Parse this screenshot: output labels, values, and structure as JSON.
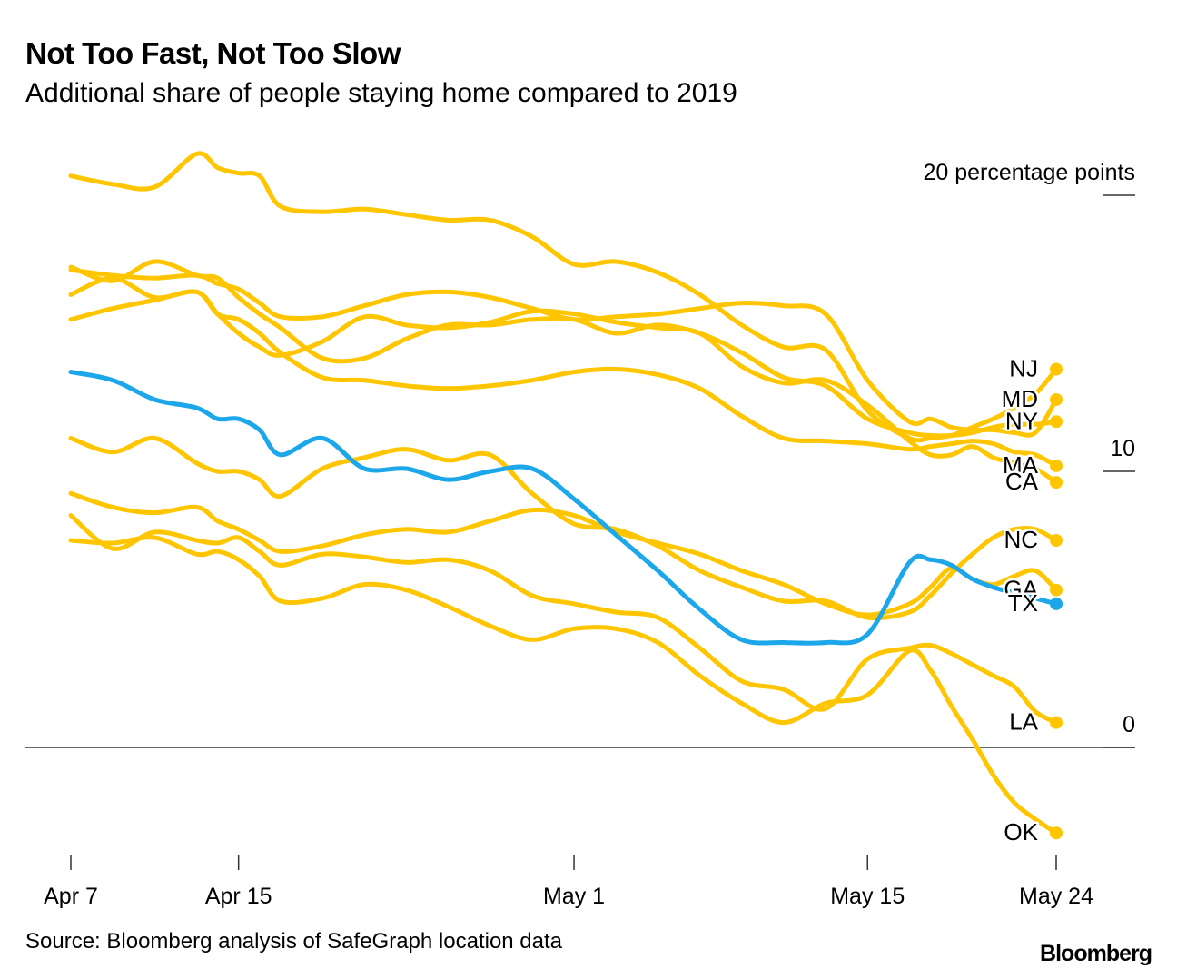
{
  "title": "Not Too Fast, Not Too Slow",
  "subtitle": "Additional share of people staying home compared to 2019",
  "source": "Source: Bloomberg analysis of SafeGraph location data",
  "brand": "Bloomberg",
  "colors": {
    "other": "#FFC600",
    "highlight": "#1BA7EA",
    "axis": "#333333"
  },
  "chart_data": {
    "type": "line",
    "y_unit_label": "20 percentage points",
    "yticks": [
      {
        "value": 20,
        "label": "20 percentage points"
      },
      {
        "value": 10,
        "label": "10"
      },
      {
        "value": 0,
        "label": "0"
      }
    ],
    "ylim": [
      -4,
      22
    ],
    "xticks": [
      {
        "day": 0,
        "label": "Apr 7"
      },
      {
        "day": 8,
        "label": "Apr 15"
      },
      {
        "day": 24,
        "label": "May 1"
      },
      {
        "day": 38,
        "label": "May 15"
      },
      {
        "day": 47,
        "label": "May 24"
      }
    ],
    "x_start_label": "Apr 7",
    "highlight": "TX",
    "series": [
      {
        "name": "NJ",
        "x": [
          0,
          2,
          4,
          6,
          7,
          8,
          9,
          10,
          12,
          14,
          16,
          18,
          20,
          22,
          24,
          26,
          28,
          30,
          32,
          34,
          36,
          38,
          40,
          41,
          42,
          43,
          44,
          45,
          46,
          47
        ],
        "y": [
          20.7,
          20.4,
          20.3,
          21.5,
          21.0,
          20.8,
          20.7,
          19.6,
          19.4,
          19.5,
          19.3,
          19.1,
          19.1,
          18.5,
          17.5,
          17.6,
          17.2,
          16.4,
          15.3,
          14.5,
          14.4,
          12.2,
          11.2,
          11.2,
          11.3,
          11.6,
          11.9,
          12.3,
          12.8,
          13.7
        ]
      },
      {
        "name": "MD",
        "x": [
          0,
          2,
          4,
          6,
          7,
          8,
          9,
          10,
          12,
          14,
          16,
          18,
          20,
          22,
          24,
          26,
          28,
          30,
          32,
          34,
          36,
          38,
          40,
          41,
          42,
          43,
          44,
          45,
          46,
          47
        ],
        "y": [
          17.3,
          17.1,
          17.0,
          17.1,
          16.8,
          16.6,
          16.1,
          15.6,
          15.6,
          16.0,
          16.4,
          16.5,
          16.3,
          15.9,
          15.5,
          15.6,
          15.7,
          15.9,
          16.1,
          16.0,
          15.7,
          13.3,
          11.8,
          11.9,
          11.6,
          11.5,
          11.5,
          11.4,
          11.4,
          12.6
        ]
      },
      {
        "name": "NY",
        "x": [
          0,
          2,
          4,
          6,
          7,
          8,
          9,
          10,
          12,
          14,
          16,
          18,
          20,
          22,
          24,
          26,
          28,
          30,
          32,
          34,
          36,
          38,
          40,
          41,
          42,
          43,
          44,
          45,
          46,
          47
        ],
        "y": [
          17.4,
          16.9,
          17.6,
          17.1,
          17.0,
          16.3,
          15.7,
          15.2,
          14.1,
          14.1,
          14.8,
          15.3,
          15.3,
          15.5,
          15.5,
          15.0,
          15.3,
          15.0,
          14.3,
          13.4,
          13.1,
          11.9,
          11.4,
          11.3,
          11.3,
          11.4,
          11.6,
          11.7,
          11.7,
          11.8
        ]
      },
      {
        "name": "MA",
        "x": [
          0,
          2,
          4,
          6,
          7,
          8,
          9,
          10,
          12,
          14,
          16,
          18,
          20,
          22,
          24,
          26,
          28,
          30,
          32,
          34,
          36,
          38,
          40,
          41,
          42,
          43,
          44,
          45,
          46,
          47
        ],
        "y": [
          16.4,
          17.0,
          16.3,
          16.5,
          15.7,
          15.5,
          15.0,
          14.3,
          13.4,
          13.3,
          13.1,
          13.0,
          13.1,
          13.3,
          13.6,
          13.7,
          13.5,
          13.0,
          12.0,
          11.2,
          11.1,
          11.0,
          10.8,
          10.9,
          11.0,
          11.1,
          11.0,
          10.7,
          10.6,
          10.2
        ]
      },
      {
        "name": "CA",
        "x": [
          0,
          2,
          4,
          6,
          7,
          8,
          9,
          10,
          12,
          14,
          16,
          18,
          20,
          22,
          24,
          26,
          28,
          30,
          32,
          34,
          36,
          38,
          40,
          41,
          42,
          43,
          44,
          45,
          46,
          47
        ],
        "y": [
          15.5,
          15.9,
          16.2,
          16.5,
          15.7,
          15.0,
          14.5,
          14.2,
          14.7,
          15.6,
          15.3,
          15.2,
          15.4,
          15.8,
          15.7,
          15.4,
          15.2,
          15.0,
          13.8,
          13.2,
          13.3,
          12.4,
          11.1,
          10.6,
          10.6,
          10.9,
          10.5,
          10.3,
          10.1,
          9.6
        ]
      },
      {
        "name": "NC",
        "x": [
          0,
          2,
          4,
          6,
          7,
          8,
          9,
          10,
          12,
          14,
          16,
          18,
          20,
          22,
          24,
          26,
          28,
          30,
          32,
          34,
          36,
          38,
          40,
          41,
          42,
          43,
          44,
          45,
          46,
          47
        ],
        "y": [
          11.2,
          10.7,
          11.2,
          10.3,
          10.0,
          10.0,
          9.7,
          9.1,
          10.1,
          10.5,
          10.8,
          10.4,
          10.6,
          9.2,
          8.1,
          7.9,
          7.3,
          6.4,
          5.8,
          5.3,
          5.3,
          4.7,
          4.9,
          5.5,
          6.3,
          7.0,
          7.6,
          7.9,
          7.9,
          7.5
        ]
      },
      {
        "name": "GA",
        "x": [
          0,
          2,
          4,
          6,
          7,
          8,
          9,
          10,
          12,
          14,
          16,
          18,
          20,
          22,
          24,
          26,
          28,
          30,
          32,
          34,
          36,
          38,
          40,
          41,
          42,
          43,
          44,
          45,
          46,
          47
        ],
        "y": [
          9.2,
          8.7,
          8.5,
          8.7,
          8.2,
          7.9,
          7.5,
          7.1,
          7.3,
          7.7,
          7.9,
          7.8,
          8.2,
          8.6,
          8.4,
          7.8,
          7.4,
          7.0,
          6.4,
          5.9,
          5.2,
          4.8,
          5.2,
          5.8,
          6.5,
          6.1,
          5.9,
          6.2,
          6.4,
          5.7
        ]
      },
      {
        "name": "TX",
        "x": [
          0,
          2,
          4,
          6,
          7,
          8,
          9,
          10,
          12,
          14,
          16,
          18,
          20,
          22,
          24,
          26,
          28,
          30,
          32,
          34,
          36,
          38,
          40,
          41,
          42,
          43,
          44,
          45,
          46,
          47
        ],
        "y": [
          13.6,
          13.3,
          12.6,
          12.3,
          11.9,
          11.9,
          11.5,
          10.6,
          11.2,
          10.1,
          10.1,
          9.7,
          10.0,
          10.1,
          9.0,
          7.7,
          6.4,
          5.0,
          3.9,
          3.8,
          3.8,
          4.1,
          6.7,
          6.8,
          6.6,
          6.1,
          5.8,
          5.6,
          5.4,
          5.2
        ]
      },
      {
        "name": "LA",
        "x": [
          0,
          2,
          4,
          6,
          7,
          8,
          9,
          10,
          12,
          14,
          16,
          18,
          20,
          22,
          24,
          26,
          28,
          30,
          32,
          34,
          36,
          38,
          40,
          41,
          42,
          43,
          44,
          45,
          46,
          47
        ],
        "y": [
          8.4,
          7.2,
          7.8,
          7.5,
          7.4,
          7.6,
          7.1,
          6.6,
          7.0,
          6.9,
          6.7,
          6.8,
          6.4,
          5.5,
          5.2,
          4.9,
          4.7,
          3.6,
          2.4,
          2.1,
          1.4,
          3.2,
          3.6,
          3.7,
          3.4,
          3.0,
          2.6,
          2.2,
          1.3,
          0.9
        ]
      },
      {
        "name": "OK",
        "x": [
          0,
          2,
          4,
          6,
          7,
          8,
          9,
          10,
          12,
          14,
          16,
          18,
          20,
          22,
          24,
          26,
          28,
          30,
          32,
          34,
          36,
          38,
          40,
          41,
          42,
          43,
          44,
          45,
          46,
          47
        ],
        "y": [
          7.5,
          7.4,
          7.6,
          7.0,
          7.1,
          6.8,
          6.2,
          5.3,
          5.4,
          5.9,
          5.7,
          5.1,
          4.4,
          3.9,
          4.3,
          4.3,
          3.8,
          2.6,
          1.6,
          0.9,
          1.6,
          1.9,
          3.5,
          2.8,
          1.5,
          0.3,
          -1.0,
          -2.0,
          -2.6,
          -3.1
        ]
      }
    ]
  }
}
